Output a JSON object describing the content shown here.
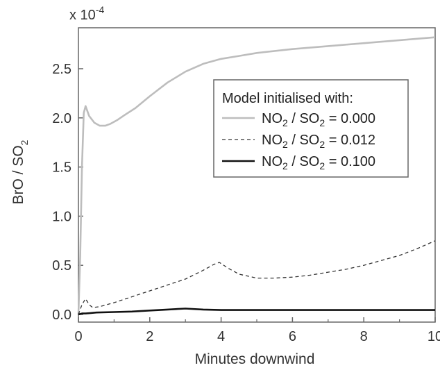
{
  "chart_data": {
    "type": "line",
    "title": "",
    "xlabel": "Minutes downwind",
    "ylabel": {
      "main": "BrO / SO",
      "sub": "2"
    },
    "y_scale_factor": {
      "base": "x 10",
      "exp": "-4"
    },
    "xlim": [
      0,
      10
    ],
    "ylim": [
      0,
      2.85
    ],
    "x_ticks": [
      "0",
      "2",
      "4",
      "6",
      "8",
      "10"
    ],
    "y_ticks": [
      "0.0",
      "0.5",
      "1.0",
      "1.5",
      "2.0",
      "2.5"
    ],
    "grid": false,
    "legend": {
      "title": "Model initialised with:",
      "placement": "top-right",
      "entries": [
        {
          "parts": [
            "NO",
            "2",
            " / SO",
            "2",
            " = 0.000"
          ]
        },
        {
          "parts": [
            "NO",
            "2",
            " / SO",
            "2",
            " = 0.012"
          ]
        },
        {
          "parts": [
            "NO",
            "2",
            " / SO",
            "2",
            " = 0.100"
          ]
        }
      ]
    },
    "series": [
      {
        "style": "solid",
        "color": "#bdbdbd",
        "x": [
          0,
          0.05,
          0.1,
          0.15,
          0.2,
          0.3,
          0.45,
          0.6,
          0.75,
          0.9,
          1.1,
          1.3,
          1.6,
          2,
          2.5,
          3,
          3.5,
          4,
          4.5,
          5,
          6,
          7,
          8,
          9,
          10
        ],
        "y": [
          0,
          0.6,
          1.5,
          2.05,
          2.12,
          2.02,
          1.95,
          1.92,
          1.92,
          1.94,
          1.98,
          2.03,
          2.1,
          2.22,
          2.36,
          2.47,
          2.55,
          2.6,
          2.63,
          2.66,
          2.7,
          2.73,
          2.76,
          2.79,
          2.82
        ]
      },
      {
        "style": "dashed",
        "color": "#333333",
        "x": [
          0,
          0.1,
          0.2,
          0.3,
          0.4,
          0.6,
          1,
          1.5,
          2,
          2.5,
          3,
          3.5,
          3.8,
          3.95,
          4.2,
          4.5,
          5,
          5.5,
          6,
          6.5,
          7,
          7.5,
          8,
          8.5,
          9,
          9.5,
          10
        ],
        "y": [
          0,
          0.1,
          0.16,
          0.1,
          0.07,
          0.08,
          0.12,
          0.18,
          0.24,
          0.3,
          0.36,
          0.45,
          0.51,
          0.53,
          0.47,
          0.41,
          0.37,
          0.37,
          0.38,
          0.4,
          0.43,
          0.46,
          0.5,
          0.55,
          0.6,
          0.67,
          0.75
        ]
      },
      {
        "style": "solid-thick",
        "color": "#111111",
        "x": [
          0,
          0.1,
          0.2,
          0.5,
          1,
          1.5,
          2,
          2.5,
          3,
          3.5,
          4,
          5,
          6,
          7,
          8,
          9,
          10
        ],
        "y": [
          0,
          0.01,
          0.01,
          0.02,
          0.025,
          0.03,
          0.04,
          0.05,
          0.06,
          0.05,
          0.045,
          0.045,
          0.045,
          0.045,
          0.045,
          0.045,
          0.045
        ]
      }
    ]
  }
}
